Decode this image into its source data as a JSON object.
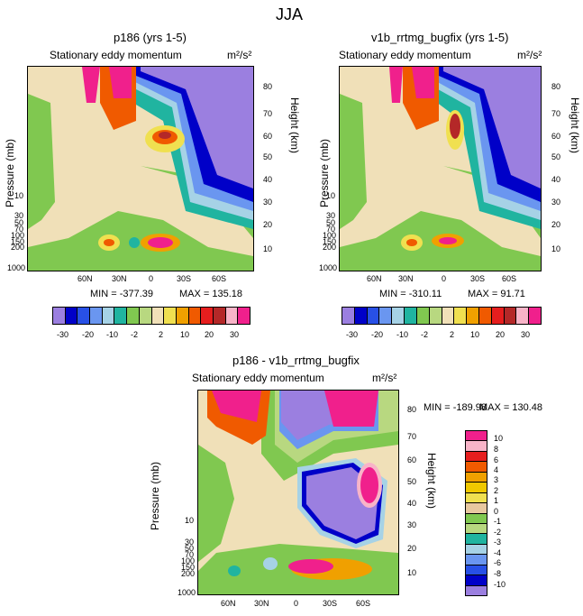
{
  "figure_title": "JJA",
  "unit_label": "m²/s²",
  "variable_label": "Stationary eddy momentum",
  "y_left_label": "Pressure (mb)",
  "y_right_label": "Height (km)",
  "lat_ticks": [
    "60N",
    "30N",
    "0",
    "30S",
    "60S"
  ],
  "pressure_ticks": [
    "10",
    "30",
    "50",
    "70",
    "100",
    "150",
    "200",
    "250",
    "300",
    "400",
    "500",
    "600",
    "700",
    "850",
    "925",
    "1000"
  ],
  "height_ticks": [
    "80",
    "70",
    "60",
    "50",
    "40",
    "30",
    "20",
    "10"
  ],
  "chart_data": [
    {
      "type": "heatmap",
      "title": "p186 (yrs 1-5)",
      "subtitle": "Stationary eddy momentum",
      "xlabel": "",
      "ylabel": "Pressure (mb)",
      "ylabel_right": "Height (km)",
      "stats": {
        "min_label": "MIN = -377.39",
        "max_label": "MAX = 135.18",
        "min": -377.39,
        "max": 135.18
      },
      "colorbar_orientation": "horizontal",
      "colorbar_levels": [
        -30,
        -20,
        -10,
        -2,
        2,
        10,
        20,
        30
      ],
      "colorbar_tick_labels": [
        "-30",
        "-20",
        "-10",
        "-2",
        "2",
        "10",
        "20",
        "30"
      ],
      "colors": [
        "#9b7fe0",
        "#0000c8",
        "#2850e6",
        "#6a96f0",
        "#a6d2e6",
        "#20b4a0",
        "#80c850",
        "#b8d880",
        "#f0e0b8",
        "#f0e050",
        "#f0a000",
        "#f05a00",
        "#e61e1e",
        "#b42828",
        "#f8b4c8",
        "#f0208c"
      ]
    },
    {
      "type": "heatmap",
      "title": "v1b_rrtmg_bugfix (yrs 1-5)",
      "subtitle": "Stationary eddy momentum",
      "xlabel": "",
      "ylabel": "Pressure (mb)",
      "ylabel_right": "Height (km)",
      "stats": {
        "min_label": "MIN = -310.11",
        "max_label": "MAX = 91.71",
        "min": -310.11,
        "max": 91.71
      },
      "colorbar_orientation": "horizontal",
      "colorbar_levels": [
        -30,
        -20,
        -10,
        -2,
        2,
        10,
        20,
        30
      ],
      "colorbar_tick_labels": [
        "-30",
        "-20",
        "-10",
        "-2",
        "2",
        "10",
        "20",
        "30"
      ],
      "colors": [
        "#9b7fe0",
        "#0000c8",
        "#2850e6",
        "#6a96f0",
        "#a6d2e6",
        "#20b4a0",
        "#80c850",
        "#b8d880",
        "#f0e0b8",
        "#f0e050",
        "#f0a000",
        "#f05a00",
        "#e61e1e",
        "#b42828",
        "#f8b4c8",
        "#f0208c"
      ]
    },
    {
      "type": "heatmap",
      "title": "p186 - v1b_rrtmg_bugfix",
      "subtitle": "Stationary eddy momentum",
      "xlabel": "",
      "ylabel": "Pressure (mb)",
      "ylabel_right": "Height (km)",
      "stats": {
        "min_label": "MIN = -189.98",
        "max_label": "MAX = 130.48",
        "min": -189.98,
        "max": 130.48
      },
      "colorbar_orientation": "vertical",
      "colorbar_levels": [
        10,
        8,
        6,
        4,
        3,
        2,
        1,
        0,
        -1,
        -2,
        -3,
        -4,
        -6,
        -8,
        -10
      ],
      "colorbar_tick_labels": [
        "10",
        "8",
        "6",
        "4",
        "3",
        "2",
        "1",
        "0",
        "-1",
        "-2",
        "-3",
        "-4",
        "-6",
        "-8",
        "-10"
      ],
      "colors": [
        "#f0208c",
        "#f8b4c8",
        "#e61e1e",
        "#f05a00",
        "#f0a000",
        "#f0c800",
        "#f0e050",
        "#e8c8a0",
        "#80c850",
        "#b8d880",
        "#20b4a0",
        "#a6d2e6",
        "#6a96f0",
        "#2850e6",
        "#0000c8",
        "#9b7fe0"
      ]
    }
  ]
}
